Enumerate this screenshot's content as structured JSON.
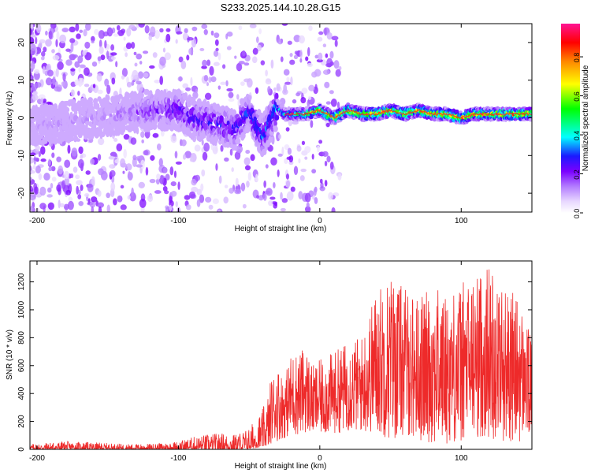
{
  "title": "S233.2025.144.10.28.G15",
  "colors": {
    "snr_line": "#ee2a2a",
    "colormap": [
      "#ffffff",
      "#e8d8ff",
      "#b37cff",
      "#7a00ff",
      "#1a1aff",
      "#00ffff",
      "#00ff00",
      "#ffff00",
      "#ff8800",
      "#ff0000",
      "#ff1493"
    ]
  },
  "chart_data": [
    {
      "type": "heatmap",
      "title": "S233.2025.144.10.28.G15",
      "xlabel": "Height of straight line (km)",
      "ylabel": "Frequency (Hz)",
      "xlim": [
        -205,
        150
      ],
      "ylim": [
        -25,
        25
      ],
      "xticks": [
        -200,
        -100,
        0,
        100
      ],
      "yticks": [
        -20,
        -10,
        0,
        10,
        20
      ],
      "colorbar": {
        "label": "Normalized spectral amplitude",
        "range": [
          0,
          0.97
        ],
        "ticks": [
          "0.0",
          "0.2",
          "0.4",
          "0.6",
          "0.8"
        ]
      },
      "grid": false,
      "description_points": {
        "ridge_frequency_hz_by_height_km": [
          [
            -200,
            -2
          ],
          [
            -180,
            -1
          ],
          [
            -160,
            0
          ],
          [
            -140,
            1
          ],
          [
            -120,
            2
          ],
          [
            -100,
            2
          ],
          [
            -90,
            0
          ],
          [
            -80,
            -1
          ],
          [
            -70,
            -2
          ],
          [
            -60,
            -3
          ],
          [
            -50,
            2
          ],
          [
            -45,
            -2
          ],
          [
            -40,
            -5
          ],
          [
            -30,
            3
          ],
          [
            -25,
            1
          ],
          [
            -20,
            1
          ],
          [
            -10,
            1
          ],
          [
            0,
            2
          ],
          [
            10,
            0
          ],
          [
            20,
            2
          ],
          [
            30,
            1
          ],
          [
            40,
            1
          ],
          [
            50,
            2
          ],
          [
            60,
            1
          ],
          [
            70,
            2
          ],
          [
            80,
            1
          ],
          [
            90,
            1
          ],
          [
            100,
            0
          ],
          [
            110,
            1
          ],
          [
            120,
            1
          ],
          [
            130,
            1
          ],
          [
            140,
            1
          ],
          [
            150,
            1
          ]
        ],
        "peak_amplitude_by_height_km": [
          [
            -200,
            0.12
          ],
          [
            -150,
            0.14
          ],
          [
            -100,
            0.28
          ],
          [
            -60,
            0.32
          ],
          [
            -40,
            0.34
          ],
          [
            -20,
            0.5
          ],
          [
            0,
            0.75
          ],
          [
            20,
            0.8
          ],
          [
            40,
            0.85
          ],
          [
            60,
            0.8
          ],
          [
            80,
            0.82
          ],
          [
            100,
            0.85
          ],
          [
            120,
            0.82
          ],
          [
            140,
            0.85
          ]
        ]
      }
    },
    {
      "type": "line",
      "xlabel": "Height of straight line (km)",
      "ylabel": "SNR (10 * v/v)",
      "xlim": [
        -205,
        150
      ],
      "ylim": [
        0,
        1350
      ],
      "xticks": [
        -200,
        -100,
        0,
        100
      ],
      "yticks": [
        0,
        200,
        400,
        600,
        800,
        1000,
        1200
      ],
      "grid": false,
      "series": [
        {
          "envelope_x": [
            -205,
            -180,
            -160,
            -140,
            -120,
            -100,
            -90,
            -80,
            -70,
            -60,
            -50,
            -40,
            -35,
            -30,
            -25,
            -20,
            -15,
            -10,
            -5,
            0,
            10,
            20,
            30,
            40,
            50,
            60,
            70,
            80,
            90,
            100,
            110,
            120,
            130,
            140,
            150
          ],
          "envelope_max": [
            40,
            60,
            50,
            40,
            40,
            60,
            90,
            110,
            120,
            110,
            160,
            300,
            500,
            600,
            520,
            700,
            700,
            740,
            600,
            640,
            700,
            780,
            820,
            1160,
            1270,
            1160,
            1100,
            1170,
            1120,
            1200,
            1250,
            1340,
            1180,
            1100,
            800
          ],
          "envelope_min": [
            0,
            0,
            0,
            0,
            0,
            0,
            0,
            0,
            0,
            0,
            0,
            20,
            40,
            60,
            80,
            100,
            100,
            120,
            100,
            100,
            110,
            130,
            120,
            110,
            60,
            100,
            60,
            40,
            40,
            40,
            80,
            80,
            60,
            40,
            100
          ]
        }
      ]
    }
  ]
}
